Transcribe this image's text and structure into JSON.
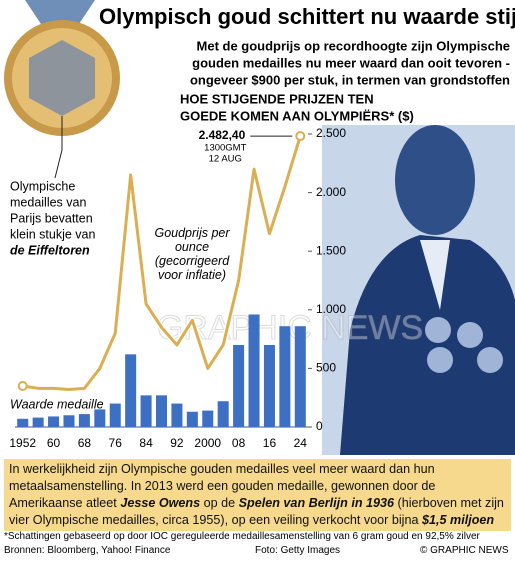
{
  "title": "Olympisch goud schittert nu waarde stijgt",
  "subtitle": [
    "Met de goudprijs op recordhoogte zijn Olympische",
    "gouden medailles nu meer waard dan ooit tevoren -",
    "ongeveer $900 per stuk, in termen van grondstoffen"
  ],
  "medal_caption": [
    "Olympische",
    "medailles van",
    "Parijs bevatten",
    "klein stukje van",
    "de Eiffeltoren"
  ],
  "watermark": "GRAPHIC NEWS",
  "chart_data": {
    "type": "bar-line",
    "title": [
      "HOE STIJGENDE PRIJZEN TEN",
      "GOEDE KOMEN AAN OLYMPIËRS* ($)"
    ],
    "categories": [
      "1952",
      null,
      "60",
      null,
      "68",
      null,
      "76",
      null,
      "84",
      null,
      "92",
      null,
      "2000",
      null,
      "08",
      null,
      "16",
      null,
      "24"
    ],
    "series": [
      {
        "name": "Waarde medaille",
        "type": "bar",
        "color": "#3d6fc2",
        "values": [
          70,
          80,
          90,
          100,
          110,
          150,
          200,
          620,
          270,
          270,
          200,
          130,
          140,
          220,
          700,
          960,
          700,
          860,
          860
        ]
      },
      {
        "name": "Goudprijs per ounce (gecorrigeerd voor inflatie)",
        "type": "line",
        "color": "#dcae52",
        "values": [
          350,
          330,
          330,
          320,
          330,
          500,
          800,
          2150,
          1050,
          850,
          700,
          910,
          500,
          700,
          1250,
          2200,
          1650,
          2050,
          2482.4
        ],
        "value_labels": [
          null,
          null,
          null,
          null,
          null,
          null,
          null,
          null,
          null,
          null,
          null,
          null,
          null,
          null,
          null,
          null,
          null,
          null,
          "2.482,40"
        ]
      }
    ],
    "annotations": [
      "1300GMT",
      "12 AUG"
    ],
    "ylim": [
      0,
      2500
    ],
    "yticks": [
      0,
      500,
      {
        "value": 1000,
        "label": "1.000"
      },
      {
        "value": 1500,
        "label": "1.500"
      },
      {
        "value": 2000,
        "label": "2.000"
      },
      {
        "value": 2500,
        "label": "2.500"
      }
    ]
  },
  "info": [
    "In werkelijkheid zijn Olympische gouden medailles veel meer waard dan hun metaalsamenstelling. In 2013 werd een gouden medaille, gewonnen door de Amerikaanse atleet ",
    "Jesse Owens",
    " op de ",
    "Spelen van Berlijn in 1936",
    " (hierboven met zijn vier Olympische medailles, circa 1955), op een veiling verkocht voor bijna ",
    "$1,5 miljoen"
  ],
  "footnote": "*Schattingen gebaseerd op door IOC gereguleerde medaillesamenstelling van 6 gram goud en 92,5% zilver",
  "sources": "Bronnen: Bloomberg, Yahoo! Finance",
  "photo_credit": "Foto: Getty Images",
  "copyright": "© GRAPHIC NEWS"
}
